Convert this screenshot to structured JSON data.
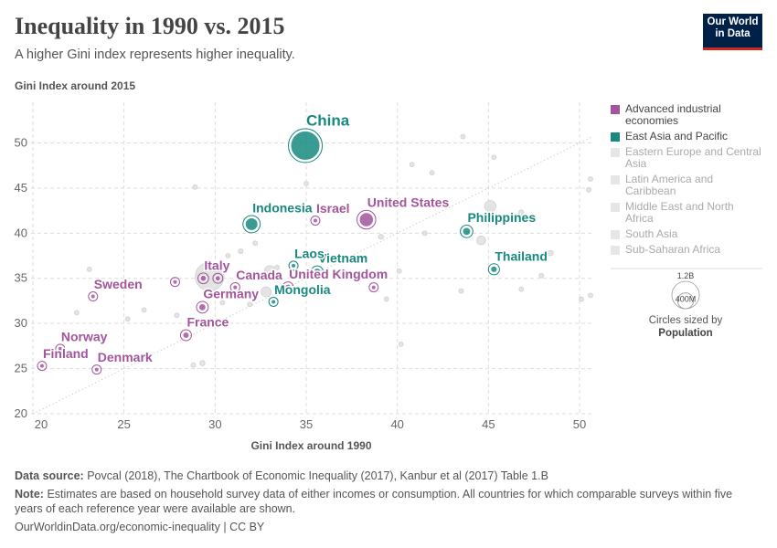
{
  "chart_data": {
    "type": "scatter",
    "title": "Inequality in 1990 vs. 2015",
    "subtitle": "A higher Gini index represents higher inequality.",
    "y_label": "Gini Index around 2015",
    "x_label": "Gini Index around 1990",
    "xlim": [
      19.9,
      50.65
    ],
    "ylim": [
      20,
      54.5
    ],
    "xticks": [
      20,
      25,
      30,
      35,
      40,
      45,
      50
    ],
    "yticks": [
      20,
      25,
      30,
      35,
      40,
      45,
      50
    ],
    "grid": true,
    "series": [
      {
        "name": "Advanced industrial economies",
        "color": "#a2559c",
        "highlight": true,
        "labels": [
          "United States",
          "Israel",
          "Italy",
          "Canada",
          "United Kingdom",
          "Sweden",
          "Germany",
          "France",
          "Norway",
          "Finland",
          "Denmark",
          null,
          null,
          null
        ],
        "x": [
          38.3,
          35.5,
          29.35,
          31.1,
          34.0,
          23.3,
          29.3,
          28.4,
          21.5,
          20.5,
          23.5,
          27.8,
          30.15,
          38.7
        ],
        "y": [
          41.5,
          41.4,
          35.0,
          34.0,
          34.0,
          33.0,
          31.8,
          28.7,
          27.2,
          25.3,
          24.9,
          34.6,
          35.0,
          34.0
        ],
        "size": [
          321000000,
          8400000,
          60000000,
          36000000,
          65000000,
          9800000,
          82000000,
          66000000,
          5200000,
          5500000,
          5700000,
          17000000,
          46000000,
          11000000
        ]
      },
      {
        "name": "East Asia and Pacific",
        "color": "#18897f",
        "highlight": true,
        "labels": [
          "China",
          "Indonesia",
          "Philippines",
          "Thailand",
          "Laos",
          "Vietnam",
          "Mongolia"
        ],
        "x": [
          34.95,
          32.0,
          43.8,
          45.3,
          34.3,
          35.6,
          33.2
        ],
        "y": [
          49.7,
          41.0,
          40.2,
          36.0,
          36.4,
          35.7,
          32.4
        ],
        "size": [
          1371000000,
          258000000,
          101000000,
          68000000,
          6800000,
          92000000,
          3000000
        ]
      },
      {
        "name": "Eastern Europe and Central Asia",
        "color": "#dddddd",
        "highlight": false,
        "x": [
          23.1,
          22.4,
          25.2,
          26.1,
          27.9,
          28.8,
          29.3,
          31.4,
          30.4,
          32.2,
          31.9,
          40.2
        ],
        "y": [
          36.0,
          31.2,
          30.5,
          31.5,
          30.9,
          25.4,
          25.6,
          38.0,
          32.3,
          38.9,
          32.1,
          27.7
        ],
        "size": [
          3000000,
          2000000,
          10000000,
          4000000,
          9000000,
          2000000,
          44000000,
          38000000,
          9000000,
          20000000,
          1000000,
          1000000
        ]
      },
      {
        "name": "Latin America and Caribbean",
        "color": "#dddddd",
        "highlight": false,
        "x": [
          45.1,
          46.8,
          48.4,
          47.9,
          46.8,
          43.5,
          50.1,
          50.6,
          50.5,
          45.3,
          43.6,
          44.6
        ],
        "y": [
          43.0,
          42.3,
          37.8,
          35.3,
          33.8,
          33.6,
          32.7,
          33.1,
          44.8,
          48.4,
          50.7,
          39.2
        ],
        "size": [
          206000000,
          43000000,
          48000000,
          10000000,
          3000000,
          16000000,
          2000000,
          4000000,
          7000000,
          4000000,
          500000,
          127000000
        ]
      },
      {
        "name": "Middle East and North Africa",
        "color": "#dddddd",
        "highlight": false,
        "x": [
          30.7,
          33.4,
          35.3,
          39.1,
          39.4
        ],
        "y": [
          37.5,
          36.2,
          37.6,
          39.6,
          32.7
        ],
        "size": [
          30000000,
          5000000,
          80000000,
          40000000,
          11000000
        ]
      },
      {
        "name": "South Asia",
        "color": "#dddddd",
        "highlight": false,
        "x": [
          29.7,
          32.8,
          33.0
        ],
        "y": [
          35.2,
          33.5,
          35.8
        ],
        "size": [
          1310000000,
          160000000,
          189000000
        ]
      },
      {
        "name": "Sub-Saharan Africa",
        "color": "#dddddd",
        "highlight": false,
        "x": [
          28.9,
          35.0,
          40.8,
          41.9,
          40.1,
          50.6,
          41.5
        ],
        "y": [
          45.1,
          45.5,
          47.6,
          46.7,
          35.8,
          46.0,
          40.0
        ],
        "size": [
          2000000,
          2000000,
          3000000,
          2000000,
          15000000,
          1000000,
          25000000
        ]
      }
    ],
    "size_legend": {
      "title": "Circles sized by",
      "variable": "Population",
      "ticks": [
        {
          "value": 1200000000,
          "label": "1.2B"
        },
        {
          "value": 400000000,
          "label": "400M"
        }
      ]
    }
  },
  "logo": {
    "line1": "Our World",
    "line2": "in Data"
  },
  "footer": {
    "source_label": "Data source:",
    "source": "Povcal (2018), The Chartbook of Economic Inequality (2017), Kanbur et al (2017) Table 1.B",
    "note_label": "Note:",
    "note": "Estimates are based on household survey data of either incomes or consumption. All countries for which comparable surveys within five years of each reference year were available are shown.",
    "url": "OurWorldinData.org/economic-inequality | CC BY"
  }
}
